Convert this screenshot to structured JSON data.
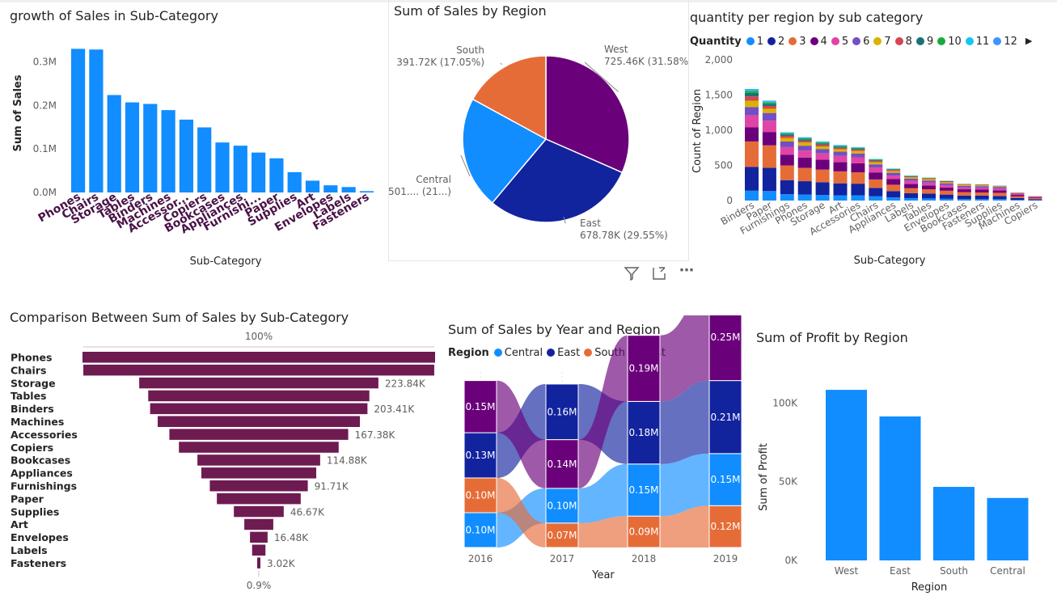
{
  "legend_colors": [
    "#118dff",
    "#12239e",
    "#e66c37",
    "#6b007b",
    "#e044a7",
    "#744ec2",
    "#d9b300",
    "#d64550",
    "#197278",
    "#1aab40",
    "#15c6f4",
    "#4092ff"
  ],
  "charts": {
    "c1": {
      "title": "growth of Sales in Sub-Category",
      "chart_data": {
        "type": "bar",
        "categories": [
          "Phones",
          "Chairs",
          "Storage",
          "Tables",
          "Binders",
          "Machines",
          "Accessor...",
          "Copiers",
          "Bookcases",
          "Appliances",
          "Furnishi...",
          "Paper",
          "Supplies",
          "Art",
          "Envelopes",
          "Labels",
          "Fasteners"
        ],
        "values": [
          330007,
          328449,
          223844,
          206966,
          203413,
          189239,
          167380,
          149528,
          114880,
          107532,
          91705,
          78479,
          46674,
          27119,
          16476,
          12486,
          3024
        ],
        "xlabel": "Sub-Category",
        "ylabel": "Sum of Sales",
        "yticks": [
          {
            "v": 0,
            "label": "0.0M"
          },
          {
            "v": 100000,
            "label": "0.1M"
          },
          {
            "v": 200000,
            "label": "0.2M"
          },
          {
            "v": 300000,
            "label": "0.3M"
          }
        ],
        "ylim": [
          0,
          340000
        ],
        "color": "#118dff"
      }
    },
    "c2": {
      "title": "Sum of Sales by Region",
      "chart_data": {
        "type": "pie",
        "slices": [
          {
            "label": "West",
            "value": 725460,
            "text": "725.46K (31.58%)",
            "color": "#6b007b"
          },
          {
            "label": "East",
            "value": 678780,
            "text": "678.78K (29.55%)",
            "color": "#12239e"
          },
          {
            "label": "Central",
            "value": 501240,
            "text": "501.... (21...)",
            "color": "#118dff"
          },
          {
            "label": "South",
            "value": 391720,
            "text": "391.72K (17.05%)",
            "color": "#e66c37"
          }
        ]
      }
    },
    "c3": {
      "title": "quantity per region by sub category",
      "chart_data": {
        "type": "bar",
        "stacked": true,
        "legend_title": "Quantity",
        "series_names": [
          "1",
          "2",
          "3",
          "4",
          "5",
          "6",
          "7",
          "8",
          "9",
          "10",
          "11",
          "12"
        ],
        "categories": [
          "Binders",
          "Paper",
          "Furnishings",
          "Phones",
          "Storage",
          "Art",
          "Accessories",
          "Chairs",
          "Appliances",
          "Labels",
          "Tables",
          "Envelopes",
          "Bookcases",
          "Fasteners",
          "Supplies",
          "Machines",
          "Copiers"
        ],
        "values": [
          [
            140,
            340,
            360,
            200,
            170,
            120,
            90,
            60,
            50,
            30,
            15,
            10
          ],
          [
            135,
            330,
            320,
            190,
            160,
            110,
            60,
            40,
            30,
            20,
            15,
            10
          ],
          [
            90,
            200,
            210,
            150,
            110,
            80,
            50,
            30,
            20,
            15,
            10,
            5
          ],
          [
            85,
            190,
            190,
            145,
            100,
            70,
            45,
            25,
            20,
            15,
            10,
            5
          ],
          [
            80,
            180,
            180,
            140,
            90,
            60,
            40,
            25,
            15,
            15,
            10,
            5
          ],
          [
            75,
            170,
            170,
            130,
            90,
            60,
            35,
            20,
            15,
            10,
            10,
            5
          ],
          [
            75,
            165,
            160,
            130,
            85,
            55,
            35,
            20,
            15,
            10,
            5,
            5
          ],
          [
            60,
            120,
            120,
            100,
            70,
            45,
            30,
            20,
            10,
            10,
            5,
            0
          ],
          [
            45,
            90,
            90,
            80,
            50,
            40,
            25,
            15,
            10,
            5,
            5,
            0
          ],
          [
            35,
            70,
            70,
            60,
            45,
            30,
            20,
            10,
            5,
            5,
            5,
            0
          ],
          [
            30,
            70,
            60,
            55,
            40,
            30,
            20,
            10,
            5,
            5,
            0,
            0
          ],
          [
            25,
            60,
            55,
            45,
            35,
            25,
            15,
            10,
            5,
            5,
            0,
            0
          ],
          [
            20,
            50,
            50,
            40,
            30,
            20,
            15,
            5,
            5,
            0,
            0,
            0
          ],
          [
            20,
            50,
            45,
            40,
            30,
            20,
            15,
            5,
            5,
            0,
            0,
            0
          ],
          [
            20,
            45,
            45,
            35,
            25,
            20,
            10,
            5,
            5,
            0,
            0,
            0
          ],
          [
            10,
            25,
            25,
            20,
            15,
            10,
            5,
            5,
            0,
            0,
            0,
            0
          ],
          [
            5,
            15,
            15,
            10,
            10,
            5,
            5,
            0,
            0,
            0,
            0,
            0
          ]
        ],
        "xlabel": "Sub-Category",
        "ylabel": "Count of Region",
        "yticks": [
          {
            "v": 0,
            "label": "0"
          },
          {
            "v": 500,
            "label": "500"
          },
          {
            "v": 1000,
            "label": "1,000"
          },
          {
            "v": 1500,
            "label": "1,500"
          },
          {
            "v": 2000,
            "label": "2,000"
          }
        ],
        "ylim": [
          0,
          2000
        ]
      }
    },
    "c4": {
      "title": "Comparison Between Sum of Sales by Sub-Category",
      "chart_data": {
        "type": "funnel",
        "top_label": "100%",
        "bottom_label": "0.9%",
        "categories": [
          "Phones",
          "Chairs",
          "Storage",
          "Tables",
          "Binders",
          "Machines",
          "Accessories",
          "Copiers",
          "Bookcases",
          "Appliances",
          "Furnishings",
          "Paper",
          "Supplies",
          "Art",
          "Envelopes",
          "Labels",
          "Fasteners"
        ],
        "values": [
          330007,
          328449,
          223844,
          206966,
          203413,
          189239,
          167380,
          149528,
          114880,
          107532,
          91705,
          78479,
          46674,
          27119,
          16476,
          12486,
          3024
        ],
        "data_labels": [
          "",
          "",
          "223.84K",
          "",
          "203.41K",
          "",
          "167.38K",
          "",
          "114.88K",
          "",
          "91.71K",
          "",
          "46.67K",
          "",
          "16.48K",
          "",
          "3.02K"
        ],
        "color": "#6e1b52"
      }
    },
    "c5": {
      "title": "Sum of Sales by Year and Region",
      "chart_data": {
        "type": "ribbon",
        "legend_title": "Region",
        "x": [
          "2016",
          "2017",
          "2018",
          "2019"
        ],
        "xlabel": "Year",
        "series": [
          {
            "name": "Central",
            "color": "#118dff",
            "values": [
              0.1,
              0.1,
              0.15,
              0.15
            ],
            "labels": [
              "0.10M",
              "0.10M",
              "0.15M",
              "0.15M"
            ]
          },
          {
            "name": "East",
            "color": "#12239e",
            "values": [
              0.13,
              0.16,
              0.18,
              0.21
            ],
            "labels": [
              "0.13M",
              "0.16M",
              "0.18M",
              "0.21M"
            ]
          },
          {
            "name": "South",
            "color": "#e66c37",
            "values": [
              0.1,
              0.07,
              0.09,
              0.12
            ],
            "labels": [
              "0.10M",
              "0.07M",
              "0.09M",
              "0.12M"
            ]
          },
          {
            "name": "West",
            "color": "#6b007b",
            "values": [
              0.15,
              0.14,
              0.19,
              0.25
            ],
            "labels": [
              "0.15M",
              "0.14M",
              "0.19M",
              "0.25M"
            ]
          }
        ]
      }
    },
    "c6": {
      "title": "Sum of Profit by Region",
      "chart_data": {
        "type": "bar",
        "categories": [
          "West",
          "East",
          "South",
          "Central"
        ],
        "values": [
          108418,
          91523,
          46749,
          39706
        ],
        "xlabel": "Region",
        "ylabel": "Sum of Profit",
        "yticks": [
          {
            "v": 0,
            "label": "0K"
          },
          {
            "v": 50000,
            "label": "50K"
          },
          {
            "v": 100000,
            "label": "100K"
          }
        ],
        "ylim": [
          0,
          110000
        ],
        "color": "#118dff"
      }
    }
  }
}
